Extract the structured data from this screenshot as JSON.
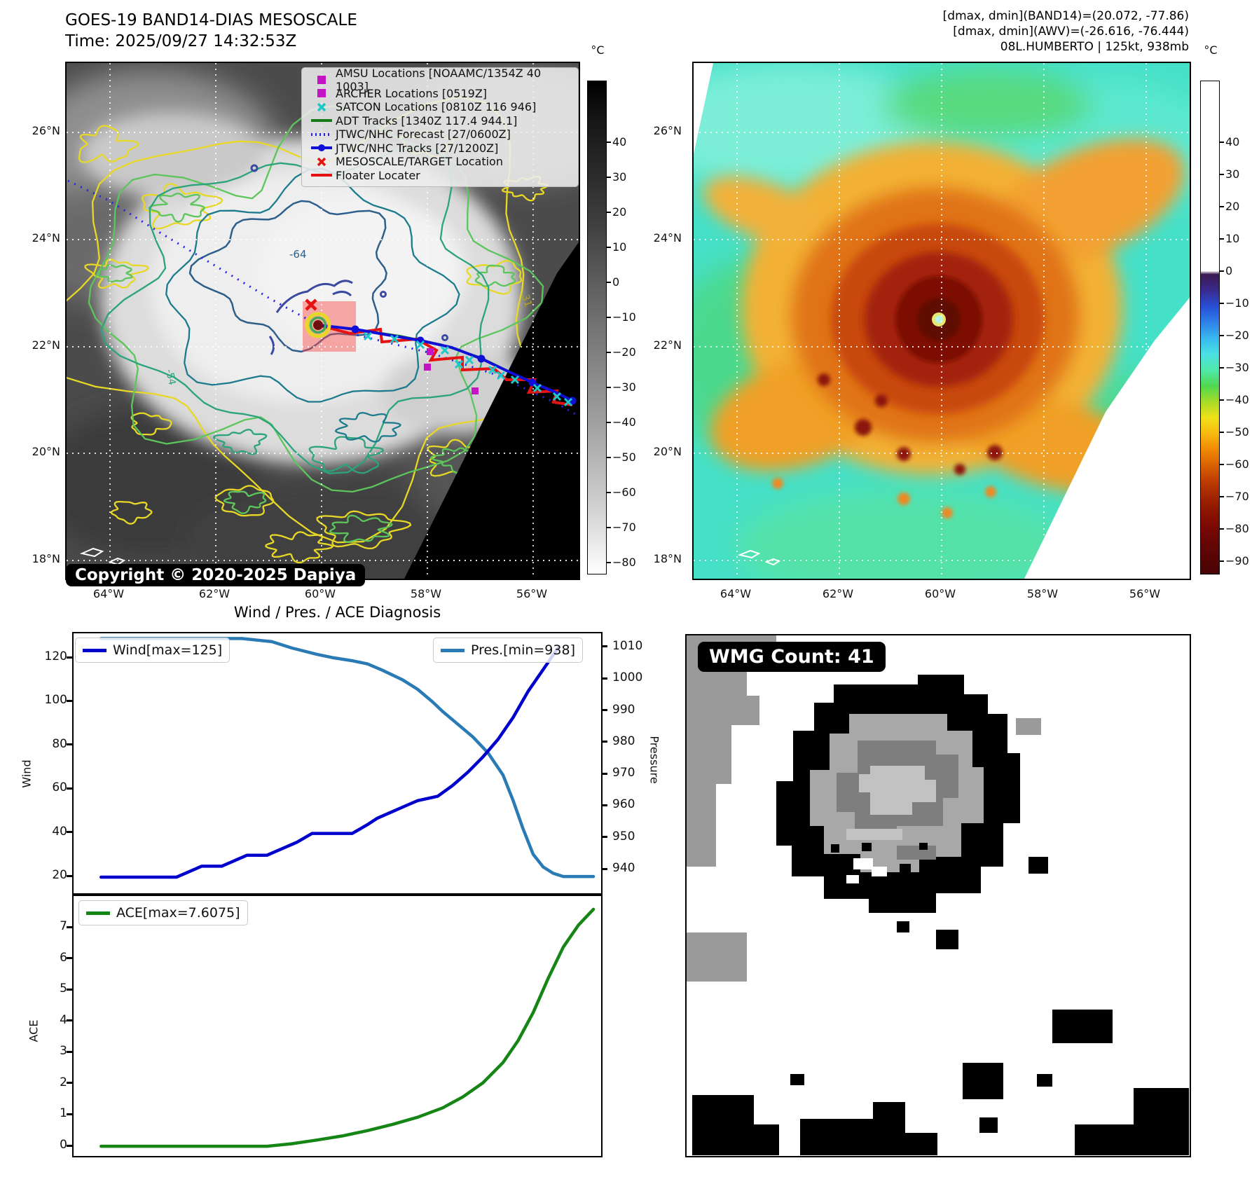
{
  "goes_panel": {
    "title": "GOES-19 BAND14-DIAS MESOSCALE",
    "time": "Time: 2025/09/27 14:32:53Z",
    "copyright": "Copyright © 2020-2025 Dapiya",
    "contour_labels": [
      "-64",
      "-54",
      "31"
    ]
  },
  "header_right": {
    "line1": "[dmax, dmin](BAND14)=(20.072, -77.86)",
    "line2": "[dmax, dmin](AWV)=(-26.616, -76.444)",
    "line3": "08L.HUMBERTO | 125kt, 938mb"
  },
  "map_legend": {
    "items": [
      {
        "marker": "square",
        "color": "#c414c4",
        "label": "AMSU Locations [NOAAMC/1354Z 40 1003]"
      },
      {
        "marker": "square",
        "color": "#c414c4",
        "label": "ARCHER Locations [0519Z]"
      },
      {
        "marker": "x",
        "color": "#1ec8c8",
        "label": "SATCON Locations [0810Z 116 946]"
      },
      {
        "marker": "line",
        "color": "#167a16",
        "label": "ADT Tracks [1340Z 117.4 944.1]"
      },
      {
        "marker": "dotted",
        "color": "#2424e8",
        "label": "JTWC/NHC Forecast [27/0600Z]"
      },
      {
        "marker": "line-dot",
        "color": "#0f0fd8",
        "label": "JTWC/NHC Tracks [27/1200Z]"
      },
      {
        "marker": "x",
        "color": "#e51212",
        "label": "MESOSCALE/TARGET Location"
      },
      {
        "marker": "line",
        "color": "#e51212",
        "label": "Floater Locater"
      }
    ]
  },
  "axes": {
    "lat_labels": [
      "26°N",
      "24°N",
      "22°N",
      "20°N",
      "18°N"
    ],
    "lon_labels": [
      "64°W",
      "62°W",
      "60°W",
      "58°W",
      "56°W"
    ]
  },
  "colorbar_left": {
    "unit": "°C",
    "ticks": [
      "40",
      "30",
      "20",
      "10",
      "0",
      "−10",
      "−20",
      "−30",
      "−40",
      "−50",
      "−60",
      "−70",
      "−80"
    ]
  },
  "colorbar_right": {
    "unit": "°C",
    "ticks": [
      "40",
      "30",
      "20",
      "10",
      "0",
      "−10",
      "−20",
      "−30",
      "−40",
      "−50",
      "−60",
      "−70",
      "−80",
      "−90"
    ]
  },
  "diagnosis": {
    "title": "Wind / Pres. / ACE Diagnosis",
    "wind_legend": "Wind[max=125]",
    "pres_legend": "Pres.[min=938]",
    "ace_legend": "ACE[max=7.6075]",
    "ylabel_wind": "Wind",
    "ylabel_pressure": "Pressure",
    "ylabel_ace": "ACE"
  },
  "wmg": {
    "label": "WMG Count: 41"
  },
  "storm": {
    "id": "08L",
    "name": "HUMBERTO",
    "max_wind_kt": 125,
    "min_pressure_mb": 938
  },
  "chart_data": [
    {
      "type": "line",
      "title": "Wind / Pres. / ACE Diagnosis",
      "xlabel": "",
      "x_ticks_visible": false,
      "legend_position": "top",
      "ylabel_left": "Wind",
      "ylim_left": [
        11,
        134
      ],
      "yticks_left": [
        20,
        40,
        60,
        80,
        100,
        120
      ],
      "ylabel_right": "Pressure",
      "ylim_right": [
        932,
        1016
      ],
      "yticks_right": [
        940,
        950,
        960,
        970,
        980,
        990,
        1000,
        1010
      ],
      "series": [
        {
          "name": "Wind[max=125]",
          "yaxis": "left",
          "color": "#0000cc",
          "max": 125,
          "x_norm": [
            0.02,
            0.17,
            0.19,
            0.22,
            0.26,
            0.28,
            0.31,
            0.35,
            0.38,
            0.41,
            0.44,
            0.52,
            0.55,
            0.57,
            0.6,
            0.63,
            0.65,
            0.69,
            0.72,
            0.75,
            0.78,
            0.81,
            0.84,
            0.87,
            0.9,
            0.93
          ],
          "values": [
            20,
            20,
            22,
            25,
            25,
            27,
            30,
            30,
            33,
            36,
            40,
            40,
            44,
            47,
            50,
            53,
            55,
            57,
            62,
            68,
            75,
            83,
            93,
            105,
            115,
            125
          ]
        },
        {
          "name": "Pres.[min=938]",
          "yaxis": "right",
          "color": "#2a7ab5",
          "min": 938,
          "x_norm": [
            0.02,
            0.3,
            0.36,
            0.4,
            0.45,
            0.48,
            0.52,
            0.55,
            0.58,
            0.62,
            0.65,
            0.68,
            0.7,
            0.73,
            0.76,
            0.79,
            0.82,
            0.84,
            0.86,
            0.88,
            0.9,
            0.92,
            0.94,
            1.0
          ],
          "values": [
            1013,
            1013,
            1012,
            1010,
            1008,
            1007,
            1006,
            1005,
            1003,
            1000,
            997,
            993,
            990,
            986,
            982,
            977,
            970,
            962,
            953,
            945,
            941,
            939,
            938,
            938
          ]
        }
      ]
    },
    {
      "type": "line",
      "ylabel": "ACE",
      "ylim": [
        -0.45,
        8.03
      ],
      "yticks": [
        0,
        1,
        2,
        3,
        4,
        5,
        6,
        7
      ],
      "x_ticks_visible": false,
      "series": [
        {
          "name": "ACE[max=7.6075]",
          "color": "#158515",
          "max": 7.6075,
          "x_norm": [
            0.02,
            0.35,
            0.4,
            0.45,
            0.5,
            0.55,
            0.6,
            0.65,
            0.7,
            0.74,
            0.78,
            0.82,
            0.85,
            0.88,
            0.91,
            0.94,
            0.97,
            1.0
          ],
          "values": [
            0.02,
            0.02,
            0.1,
            0.22,
            0.35,
            0.52,
            0.72,
            0.95,
            1.25,
            1.6,
            2.05,
            2.7,
            3.4,
            4.3,
            5.4,
            6.4,
            7.1,
            7.6075
          ]
        }
      ]
    }
  ],
  "colors": {
    "wind_line": "#0000cc",
    "pressure_line": "#2a7ab5",
    "ace_line": "#158515",
    "forecast_dotted": "#2424e8",
    "jtwc_track": "#0f0fd8",
    "floater": "#e51212",
    "adt_track": "#167a16",
    "satcon": "#1ec8c8",
    "amsu_archer": "#c414c4",
    "contour_yellow": "#e8d826",
    "contour_green": "#5cc55c",
    "contour_seagreen": "#2ba37d",
    "contour_teal": "#1d7b8e",
    "contour_steel": "#2d5f8a"
  }
}
